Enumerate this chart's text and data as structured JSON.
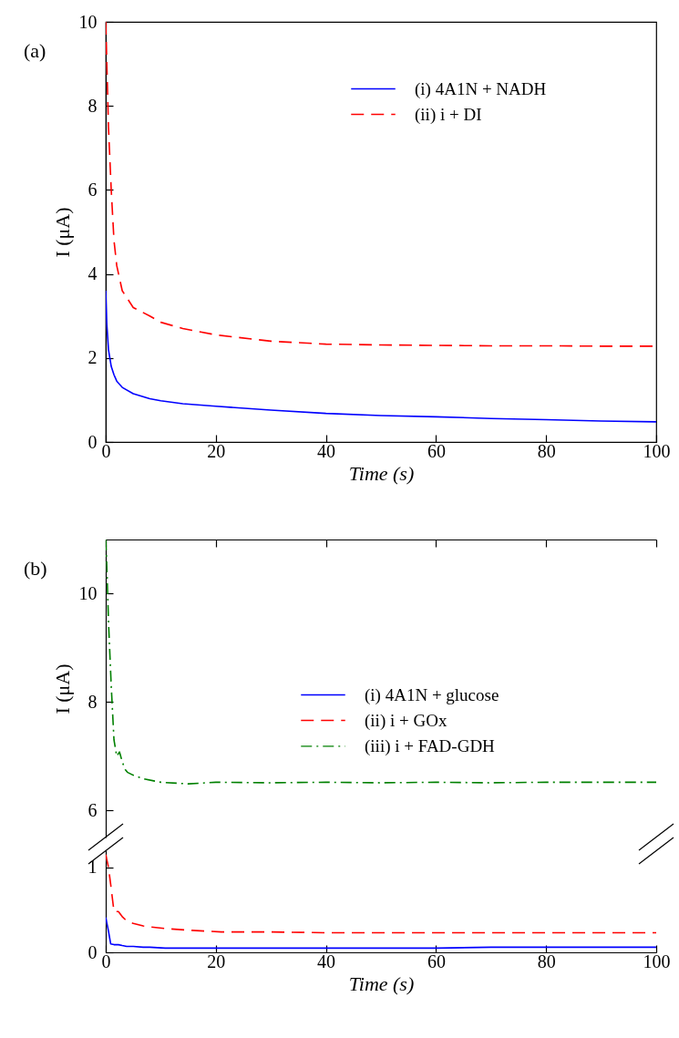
{
  "chart_data": [
    {
      "type": "line",
      "annotations": [
        "(a)"
      ],
      "xlabel": "Time (s)",
      "ylabel": "I (μA)",
      "xlim": [
        0,
        100
      ],
      "xticks": [
        0,
        20,
        40,
        60,
        80,
        100
      ],
      "ylim": [
        0,
        10
      ],
      "yticks": [
        0,
        2,
        4,
        6,
        8,
        10
      ],
      "legend": "top right",
      "grid": false,
      "x": [
        0,
        0.2,
        0.5,
        1,
        1.5,
        2,
        3,
        5,
        8,
        10,
        14,
        20,
        30,
        40,
        50,
        60,
        70,
        80,
        90,
        100
      ],
      "series": [
        {
          "name": "(i) 4A1N + NADH",
          "color": "#0000ff",
          "line_style": "solid",
          "values": [
            3.6,
            2.8,
            2.2,
            1.8,
            1.6,
            1.45,
            1.3,
            1.15,
            1.03,
            0.98,
            0.91,
            0.85,
            0.76,
            0.68,
            0.63,
            0.6,
            0.56,
            0.53,
            0.5,
            0.48
          ]
        },
        {
          "name": "(ii) i + DI",
          "color": "#ff0000",
          "line_style": "dashed",
          "values": [
            10,
            9,
            7.5,
            6,
            4.8,
            4.2,
            3.6,
            3.2,
            3,
            2.85,
            2.7,
            2.55,
            2.4,
            2.33,
            2.31,
            2.3,
            2.29,
            2.29,
            2.28,
            2.28
          ]
        }
      ]
    },
    {
      "type": "line",
      "annotations": [
        "(b)"
      ],
      "ylabel": "I (μA)",
      "xlim": [
        0,
        100
      ],
      "xticks": [
        0,
        20,
        40,
        60,
        80,
        100
      ],
      "ylim": [
        5.5,
        11
      ],
      "yticks": [
        6,
        8,
        10
      ],
      "tick_labels": "y",
      "legend": "right",
      "grid": false,
      "x": [
        0,
        0.2,
        0.5,
        1,
        1.5,
        2,
        2.5,
        3,
        3.5,
        4,
        5,
        7,
        10,
        15,
        20,
        30,
        40,
        50,
        60,
        70,
        80,
        90,
        100
      ],
      "series": [
        {
          "name": "(iii) i + FAD-GDH",
          "color": "#008000",
          "line_style": "dashdot",
          "values": [
            11,
            10.5,
            9.5,
            8.3,
            7.3,
            7.0,
            7.08,
            6.9,
            6.76,
            6.7,
            6.65,
            6.58,
            6.52,
            6.49,
            6.52,
            6.51,
            6.52,
            6.51,
            6.52,
            6.51,
            6.52,
            6.52,
            6.52
          ]
        }
      ]
    },
    {
      "type": "line",
      "xlabel": "Time (s)",
      "xlim": [
        0,
        100
      ],
      "xticks": [
        0,
        20,
        40,
        60,
        80,
        100
      ],
      "ylim": [
        0,
        1.2
      ],
      "yticks": [
        0,
        1
      ],
      "legend": "top",
      "grid": false,
      "x": [
        0,
        0.5,
        0.9,
        1.5,
        2.3,
        3,
        3.8,
        5,
        6.8,
        8,
        10.8,
        15,
        21,
        30,
        40,
        50,
        60,
        70,
        80,
        90,
        100
      ],
      "series": [
        {
          "name": "(i) 4A1N + glucose",
          "color": "#0000ff",
          "line_style": "solid",
          "values": [
            0.41,
            0.25,
            0.1,
            0.09,
            0.09,
            0.08,
            0.07,
            0.07,
            0.06,
            0.06,
            0.05,
            0.05,
            0.05,
            0.05,
            0.05,
            0.05,
            0.05,
            0.06,
            0.06,
            0.06,
            0.06
          ]
        },
        {
          "name": "(ii) i + GOx",
          "color": "#ff0000",
          "line_style": "dashed",
          "values": [
            1.15,
            1.0,
            0.8,
            0.48,
            0.48,
            0.42,
            0.37,
            0.34,
            0.31,
            0.3,
            0.28,
            0.26,
            0.24,
            0.24,
            0.23,
            0.23,
            0.23,
            0.23,
            0.23,
            0.23,
            0.23
          ]
        }
      ]
    }
  ]
}
